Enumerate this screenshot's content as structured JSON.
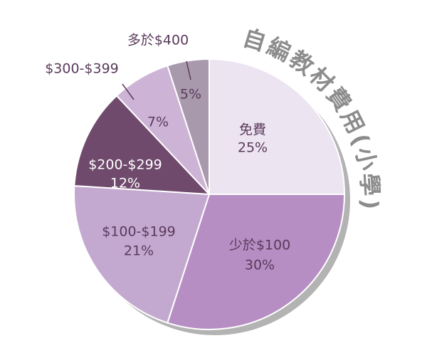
{
  "chart_data": {
    "type": "pie",
    "title": "自編教材費用(小學)",
    "categories": [
      "免費",
      "少於$100",
      "$100-$199",
      "$200-$299",
      "$300-$399",
      "多於$400"
    ],
    "values": [
      25,
      30,
      21,
      12,
      7,
      5
    ],
    "value_labels": [
      "25%",
      "30%",
      "21%",
      "12%",
      "7%",
      "5%"
    ],
    "colors": [
      "#ece4f1",
      "#b68ec3",
      "#c3a9cf",
      "#6f4a6c",
      "#cdb3d6",
      "#a999ac"
    ]
  }
}
